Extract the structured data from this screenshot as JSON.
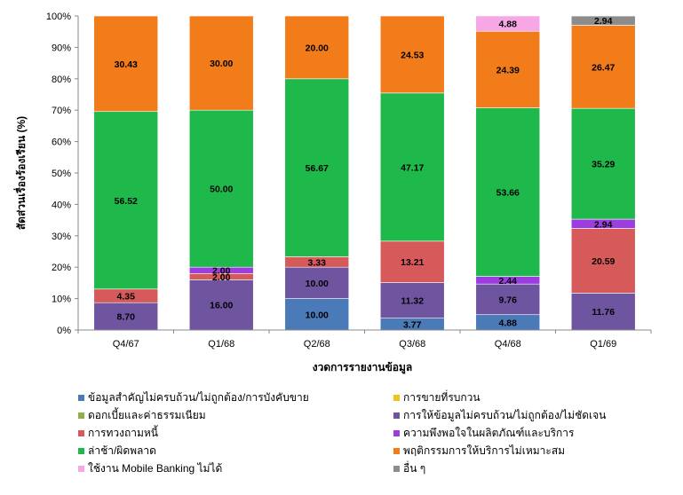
{
  "chart_data": {
    "type": "bar",
    "stacked": true,
    "percent": true,
    "categories": [
      "Q4/67",
      "Q1/68",
      "Q2/68",
      "Q3/68",
      "Q4/68",
      "Q1/69"
    ],
    "xlabel": "งวดการรายงานข้อมูล",
    "ylabel": "สัดส่วนเรื่องร้องเรียน (%)",
    "ylim": [
      0,
      100
    ],
    "yticks": [
      "0%",
      "10%",
      "20%",
      "30%",
      "40%",
      "50%",
      "60%",
      "70%",
      "80%",
      "90%",
      "100%"
    ],
    "grid": false,
    "legend_position": "bottom",
    "series": [
      {
        "name": "ข้อมูลสำคัญไม่ครบถ้วน/ไม่ถูกต้อง/การบังคับขาย",
        "color": "#4a7ab8",
        "values": [
          0,
          0,
          10.0,
          3.77,
          4.88,
          0
        ]
      },
      {
        "name": "การขายที่รบกวน",
        "color": "#f2c218",
        "values": [
          0,
          0,
          0,
          0,
          0,
          0
        ]
      },
      {
        "name": "ดอกเบี้ยและค่าธรรมเนียม",
        "color": "#8db047",
        "values": [
          0,
          0,
          0,
          0,
          0,
          0
        ]
      },
      {
        "name": "การให้ข้อมูลไม่ครบถ้วน/ไม่ถูกต้อง/ไม่ชัดเจน",
        "color": "#6f55a0",
        "values": [
          8.7,
          16.0,
          10.0,
          11.32,
          9.76,
          11.76
        ]
      },
      {
        "name": "การทวงถามหนี้",
        "color": "#d65a5a",
        "values": [
          4.35,
          2.0,
          3.33,
          13.21,
          0,
          20.59
        ]
      },
      {
        "name": "ความพึงพอใจในผลิตภัณฑ์และบริการ",
        "color": "#9c3de0",
        "values": [
          0,
          2.0,
          0,
          0,
          2.44,
          2.94
        ]
      },
      {
        "name": "ล่าช้า/ผิดพลาด",
        "color": "#1fb84a",
        "values": [
          56.52,
          50.0,
          56.67,
          47.17,
          53.66,
          35.29
        ]
      },
      {
        "name": "พฤติกรรมการให้บริการไม่เหมาะสม",
        "color": "#f27c1a",
        "values": [
          30.43,
          30.0,
          20.0,
          24.53,
          24.39,
          26.47
        ]
      },
      {
        "name": "ใช้งาน Mobile Banking ไม่ได้",
        "color": "#f7a6e6",
        "values": [
          0,
          0,
          0,
          0,
          4.88,
          0
        ]
      },
      {
        "name": "อื่น ๆ",
        "color": "#8c8c8c",
        "values": [
          0,
          0,
          0,
          0,
          0,
          2.94
        ]
      }
    ]
  }
}
